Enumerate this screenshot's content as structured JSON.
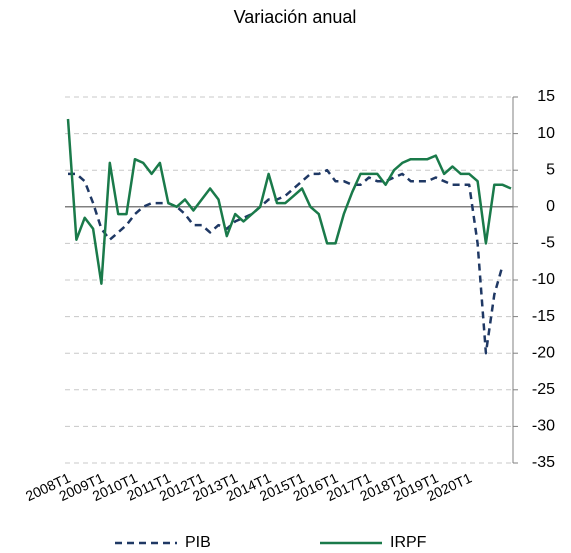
{
  "chart_data": {
    "type": "line",
    "title": "Variación anual",
    "categories": [
      "2008T1",
      null,
      null,
      null,
      "2009T1",
      null,
      null,
      null,
      "2010T1",
      null,
      null,
      null,
      "2011T1",
      null,
      null,
      null,
      "2012T1",
      null,
      null,
      null,
      "2013T1",
      null,
      null,
      null,
      "2014T1",
      null,
      null,
      null,
      "2015T1",
      null,
      null,
      null,
      "2016T1",
      null,
      null,
      null,
      "2017T1",
      null,
      null,
      null,
      "2018T1",
      null,
      null,
      null,
      "2019T1",
      null,
      null,
      null,
      "2020T1",
      null,
      null,
      null,
      null,
      null
    ],
    "series": [
      {
        "name": "PIB",
        "color": "#1f3864",
        "dashed": true,
        "values": [
          4.5,
          4.5,
          3.5,
          0.5,
          -3,
          -4.5,
          -3.5,
          -2.5,
          -1,
          0,
          0.5,
          0.5,
          0.5,
          0,
          -1,
          -2.5,
          -2.5,
          -3.5,
          -2.5,
          -3,
          -2,
          -1.5,
          -1,
          0,
          1,
          1,
          1.5,
          2.5,
          3.5,
          4.5,
          4.5,
          5,
          3.5,
          3.5,
          3,
          3,
          4,
          3.5,
          3.5,
          4,
          4.5,
          3.5,
          3.5,
          3.5,
          4,
          3.5,
          3,
          3,
          3,
          -5,
          -20,
          -12,
          -8,
          null
        ]
      },
      {
        "name": "IRPF",
        "color": "#1a7a4a",
        "dashed": false,
        "values": [
          12,
          -4.5,
          -1.5,
          -3,
          -10.5,
          6,
          -1,
          -1,
          6.5,
          6,
          4.5,
          6,
          0.5,
          0,
          1,
          -0.5,
          1,
          2.5,
          1,
          -4,
          -1,
          -2,
          -1,
          0,
          4.5,
          0.5,
          0.5,
          1.5,
          2.5,
          0,
          -1,
          -5,
          -5,
          -1,
          2,
          4.5,
          4.5,
          4.5,
          3,
          5,
          6,
          6.5,
          6.5,
          6.5,
          7,
          4.5,
          5.5,
          4.5,
          4.5,
          3.5,
          -5,
          3,
          3,
          2.5
        ]
      }
    ],
    "ylim": [
      -35,
      15
    ],
    "yticks": [
      15,
      10,
      5,
      0,
      -5,
      -10,
      -15,
      -20,
      -25,
      -30,
      -35
    ],
    "grid": true
  }
}
